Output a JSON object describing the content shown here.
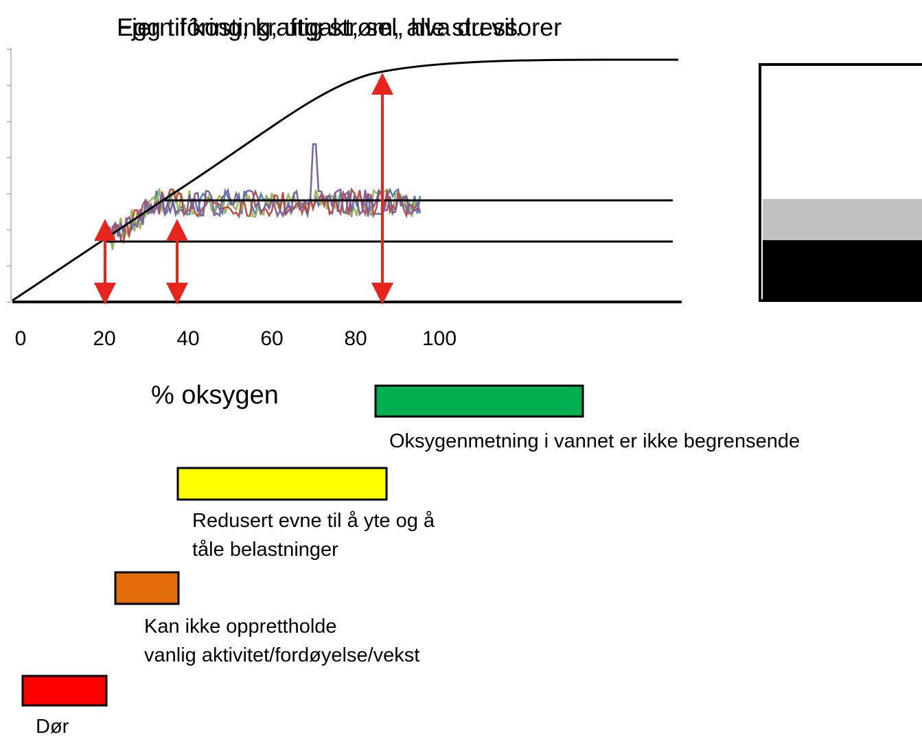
{
  "title_a": "Fjern fôring, kraftig strøm, alle stressorer",
  "title_b": "Egg til kosting, utgakt, sel, hva du vil.",
  "x_ticks": [
    "0",
    "20",
    "40",
    "60",
    "80",
    "100"
  ],
  "x_label": "% oksygen",
  "legend": [
    {
      "label_lines": [
        "Oksygenmetning i vannet er ikke begrensende"
      ]
    },
    {
      "label_lines": [
        "Redusert evne til å yte og å",
        "tåle belastninger"
      ]
    },
    {
      "label_lines": [
        "Kan ikke opprettholde",
        "vanlig aktivitet/fordøyelse/vekst"
      ]
    },
    {
      "label_lines": [
        "Dør"
      ]
    }
  ]
}
